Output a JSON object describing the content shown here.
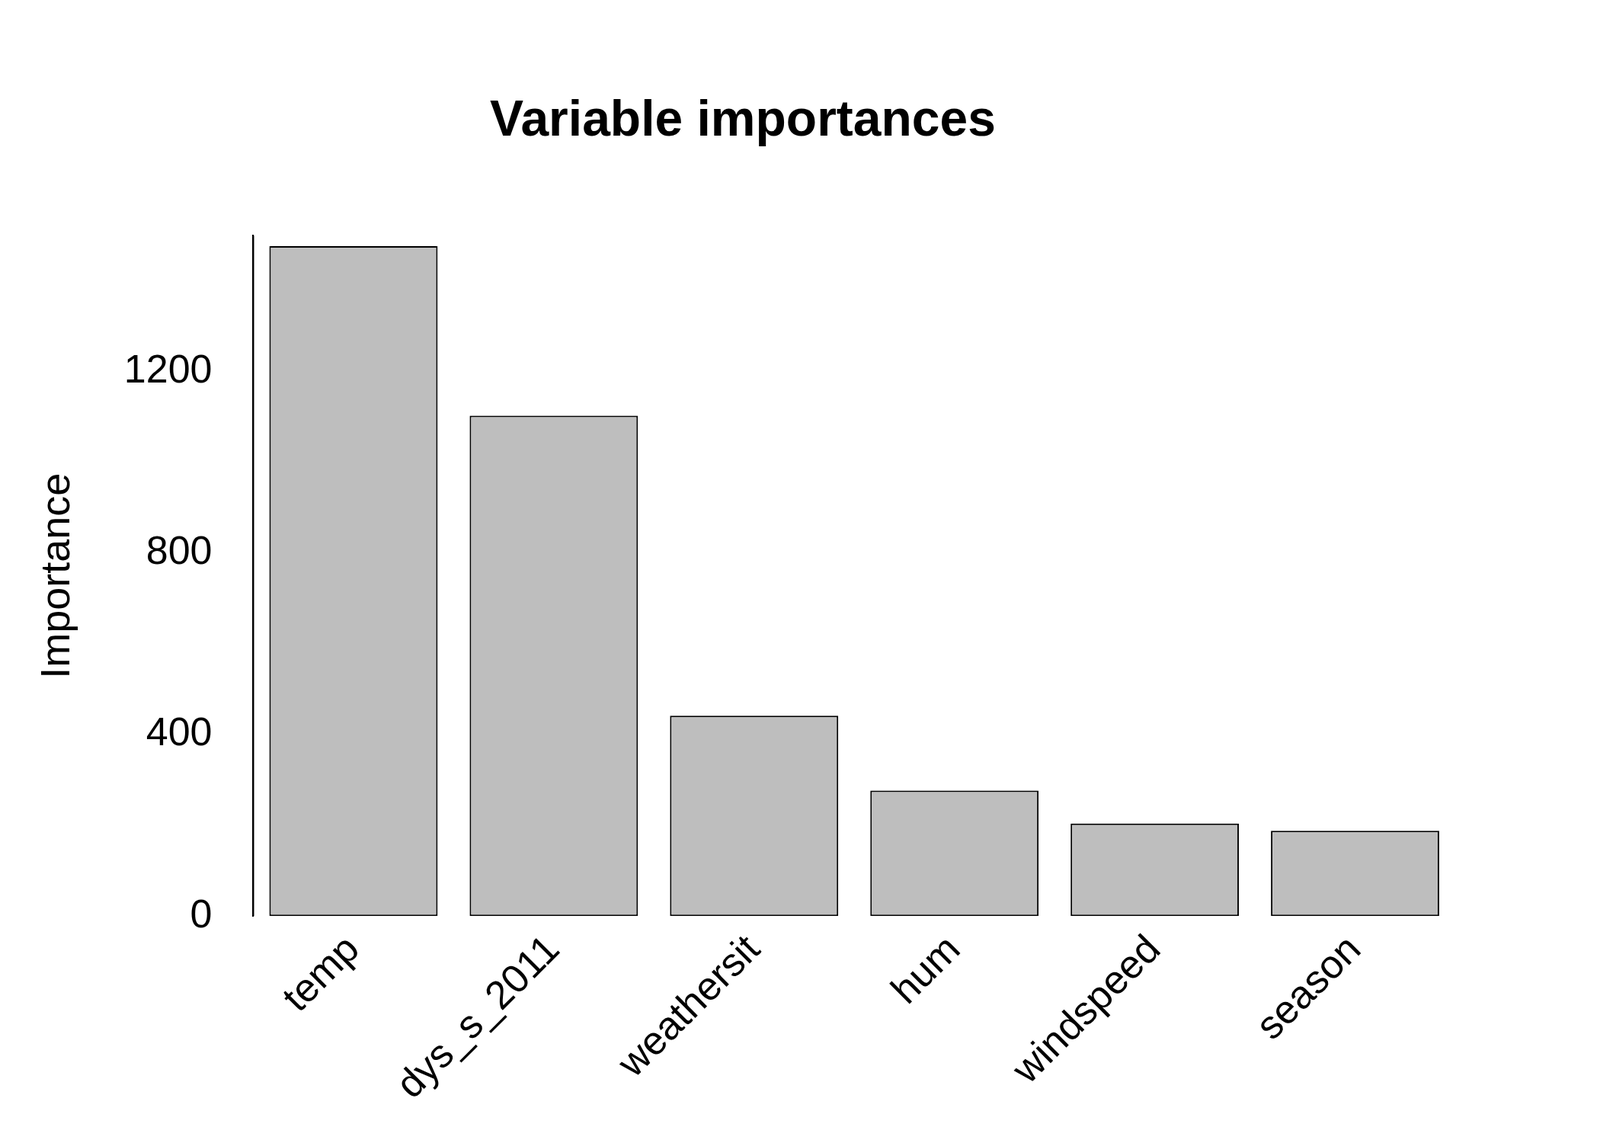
{
  "chart_data": {
    "type": "bar",
    "title": "Variable importances",
    "y_label": "Importance",
    "categories": [
      "temp",
      "dys_s_2011",
      "weathersit",
      "hum",
      "windspeed",
      "season"
    ],
    "values": [
      1477,
      1103,
      442,
      277,
      204,
      188
    ],
    "color": "#bebebe",
    "ylim": [
      0,
      1500
    ],
    "yticks": [
      0,
      400,
      800,
      1200
    ],
    "grid": false
  }
}
